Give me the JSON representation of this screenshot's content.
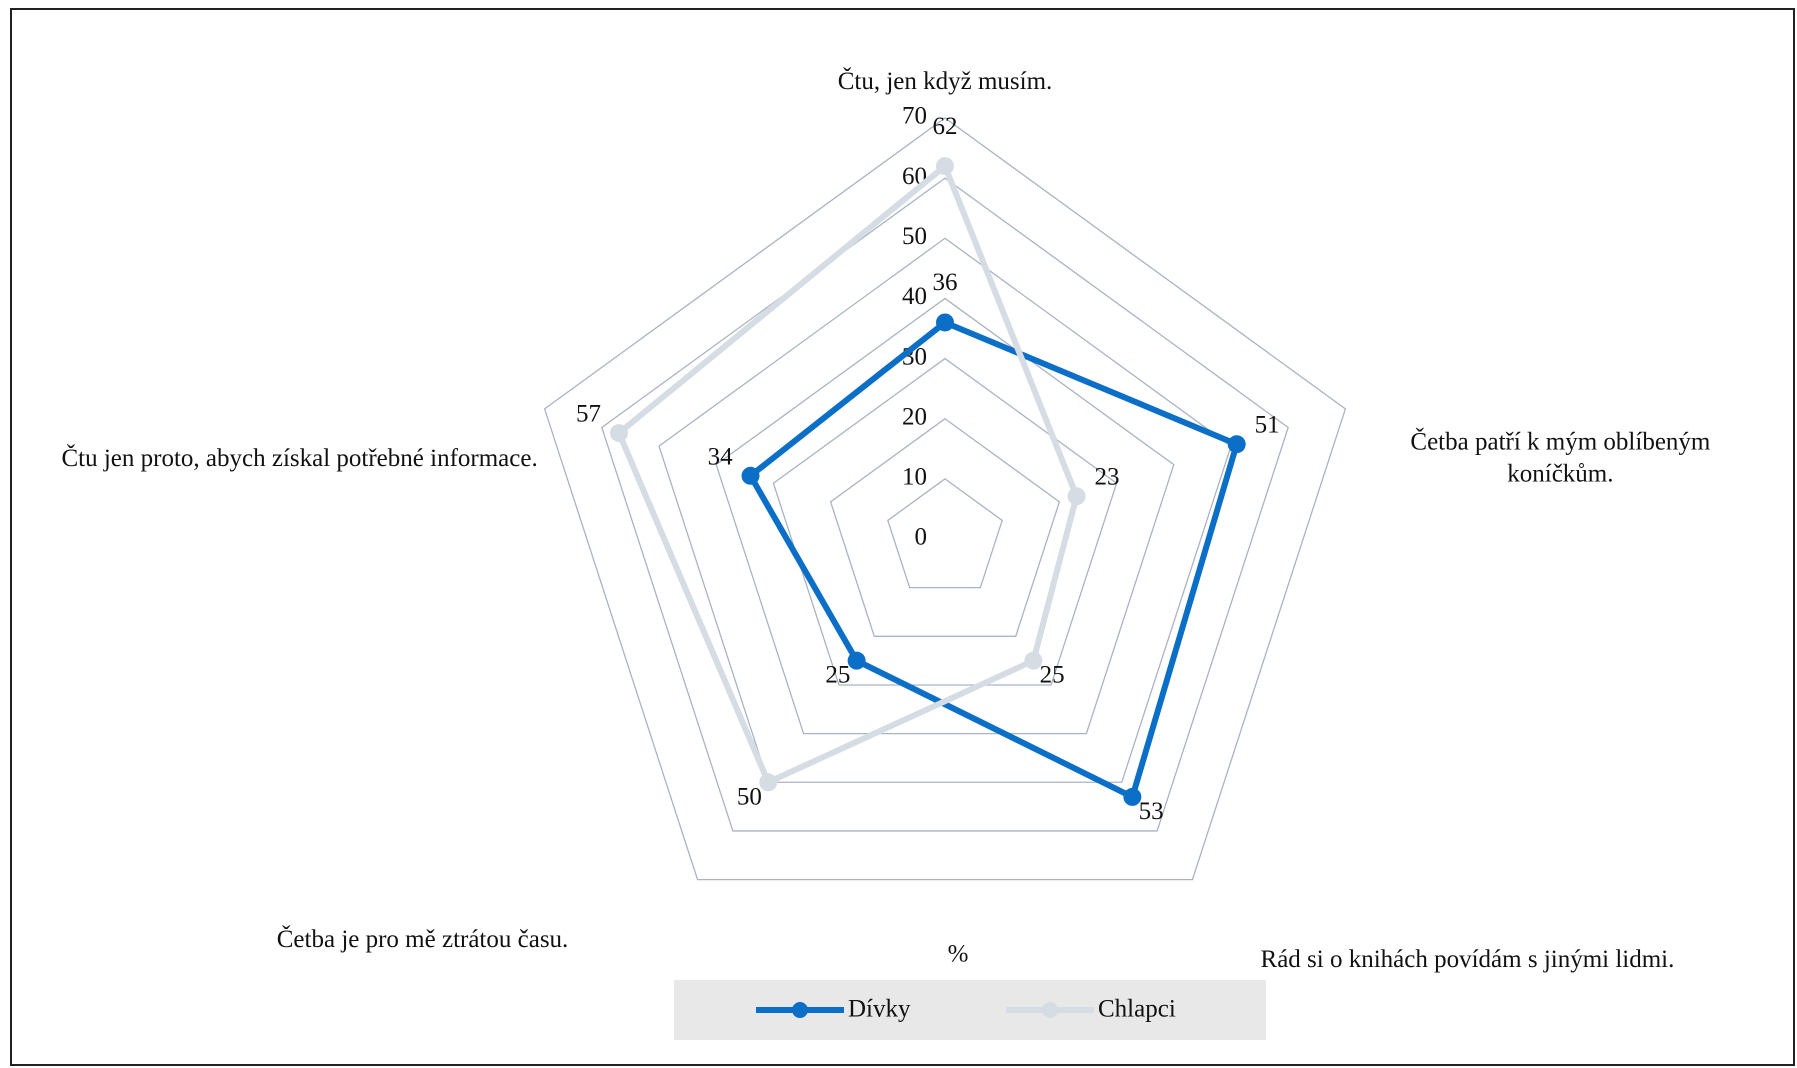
{
  "chart_data": {
    "type": "radar",
    "categories": [
      "Čtu, jen když musím.",
      "Četba patří k mým oblíbeným koníčkům.",
      "Rád si o knihách povídám s jinými lidmi.",
      "Četba je pro mě ztrátou času.",
      "Čtu jen proto, abych získal potřebné informace."
    ],
    "series": [
      {
        "name": "Dívky",
        "color": "#0b6fc7",
        "values": [
          36,
          51,
          53,
          25,
          34
        ]
      },
      {
        "name": "Chlapci",
        "color": "#d6dce4",
        "values": [
          62,
          23,
          25,
          50,
          57
        ]
      }
    ],
    "rlim": [
      0,
      70
    ],
    "rticks": [
      0,
      10,
      20,
      30,
      40,
      50,
      60,
      70
    ],
    "axis_label": "%",
    "legend": "bottom",
    "grid": true
  }
}
